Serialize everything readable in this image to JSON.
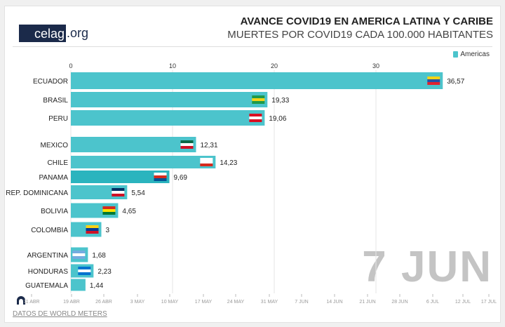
{
  "logo": {
    "main": "celag",
    "suffix": ".org"
  },
  "title": "AVANCE COVID19 EN AMERICA LATINA Y CARIBE",
  "subtitle": "MUERTES POR COVID19 CADA 100.000 HABITANTES",
  "legend": "Americas",
  "current_date": "7 JUN",
  "source": "DATOS DE WORLD METERS",
  "colors": {
    "bar": "#4cc4cc",
    "grid": "#e6e6e6",
    "date": "#c4c4c4"
  },
  "timeline": {
    "labels": [
      "11 ABR",
      "19 ABR",
      "26 ABR",
      "3 MAY",
      "10 MAY",
      "17 MAY",
      "24 MAY",
      "31 MAY",
      "7 JUN",
      "14 JUN",
      "21 JUN",
      "28 JUN",
      "6 JUL",
      "12 JUL",
      "17 JUL"
    ],
    "play_icon": "play-icon"
  },
  "chart_data": {
    "type": "bar",
    "orientation": "horizontal",
    "xlim": [
      0,
      40
    ],
    "xticks": [
      "0",
      "10",
      "20",
      "30"
    ],
    "grid": true,
    "legend_placement": "top-right",
    "categories": [
      "ECUADOR",
      "BRASIL",
      "PERU",
      "MEXICO",
      "CHILE",
      "PANAMA",
      "REP. DOMINICANA",
      "BOLIVIA",
      "COLOMBIA",
      "ARGENTINA",
      "HONDURAS",
      "GUATEMALA"
    ],
    "values": [
      36.57,
      19.33,
      19.06,
      12.31,
      14.23,
      9.69,
      5.54,
      4.65,
      3,
      1.68,
      2.23,
      1.44
    ],
    "value_labels": [
      "36,57",
      "19,33",
      "19,06",
      "12,31",
      "14,23",
      "9,69",
      "5,54",
      "4,65",
      "3",
      "1,68",
      "2,23",
      "1,44"
    ],
    "series": [
      {
        "name": "Americas",
        "values": [
          36.57,
          19.33,
          19.06,
          12.31,
          14.23,
          9.69,
          5.54,
          4.65,
          3,
          1.68,
          2.23,
          1.44
        ]
      }
    ],
    "flags": [
      [
        "#f4d316",
        "#2552a5",
        "#e0232f"
      ],
      [
        "#1e9a4a",
        "#f4d316",
        "#1e9a4a"
      ],
      [
        "#d91023",
        "#ffffff",
        "#d91023"
      ],
      [
        "#0a6847",
        "#ffffff",
        "#ce1126"
      ],
      [
        "#ffffff",
        "#ffffff",
        "#d52b1e"
      ],
      [
        "#ffffff",
        "#d52b1e",
        "#005293"
      ],
      [
        "#002d62",
        "#ffffff",
        "#ce1126"
      ],
      [
        "#d52b1e",
        "#f9e300",
        "#007934"
      ],
      [
        "#fcd116",
        "#003893",
        "#ce1126"
      ],
      [
        "#74acdf",
        "#ffffff",
        "#74acdf"
      ],
      [
        "#0073cf",
        "#ffffff",
        "#0073cf"
      ],
      [
        "#4997d0",
        "#ffffff",
        "#4997d0"
      ]
    ]
  }
}
